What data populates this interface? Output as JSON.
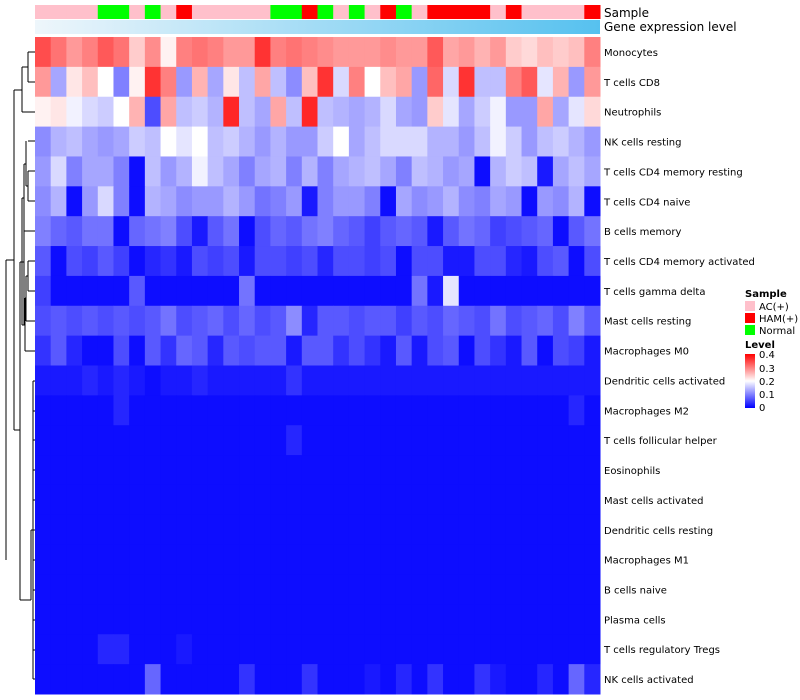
{
  "chart_data": {
    "type": "heatmap",
    "title": "",
    "annotation_tracks": [
      {
        "name": "Sample",
        "label": "Sample"
      },
      {
        "name": "Gene expression level",
        "label": "Gene expression level"
      }
    ],
    "sample_groups": [
      "A",
      "A",
      "A",
      "A",
      "N",
      "N",
      "A",
      "N",
      "A",
      "H",
      "A",
      "A",
      "A",
      "A",
      "A",
      "N",
      "N",
      "H",
      "N",
      "A",
      "N",
      "A",
      "H",
      "N",
      "A",
      "H",
      "H",
      "H",
      "H",
      "A",
      "H",
      "A",
      "A",
      "A",
      "A",
      "H"
    ],
    "rows": [
      {
        "label": "Monocytes",
        "values": [
          0.34,
          0.31,
          0.28,
          0.3,
          0.33,
          0.31,
          0.24,
          0.29,
          0.21,
          0.3,
          0.31,
          0.3,
          0.28,
          0.28,
          0.36,
          0.3,
          0.31,
          0.3,
          0.29,
          0.28,
          0.28,
          0.28,
          0.29,
          0.28,
          0.28,
          0.33,
          0.27,
          0.28,
          0.26,
          0.28,
          0.24,
          0.23,
          0.25,
          0.24,
          0.25,
          0.3
        ]
      },
      {
        "label": "T cells CD8",
        "values": [
          0.28,
          0.13,
          0.22,
          0.25,
          0.2,
          0.1,
          0.21,
          0.36,
          0.3,
          0.12,
          0.26,
          0.13,
          0.22,
          0.15,
          0.27,
          0.15,
          0.11,
          0.25,
          0.36,
          0.17,
          0.3,
          0.2,
          0.25,
          0.27,
          0.12,
          0.32,
          0.17,
          0.36,
          0.15,
          0.15,
          0.3,
          0.33,
          0.18,
          0.26,
          0.12,
          0.28
        ]
      },
      {
        "label": "Neutrophils",
        "values": [
          0.21,
          0.22,
          0.19,
          0.17,
          0.16,
          0.2,
          0.26,
          0.06,
          0.27,
          0.15,
          0.16,
          0.14,
          0.37,
          0.15,
          0.13,
          0.27,
          0.15,
          0.37,
          0.15,
          0.14,
          0.13,
          0.14,
          0.17,
          0.13,
          0.12,
          0.24,
          0.18,
          0.13,
          0.16,
          0.19,
          0.12,
          0.12,
          0.27,
          0.13,
          0.18,
          0.23
        ]
      },
      {
        "label": "NK cells resting",
        "values": [
          0.11,
          0.14,
          0.15,
          0.13,
          0.12,
          0.13,
          0.16,
          0.15,
          0.2,
          0.18,
          0.2,
          0.15,
          0.16,
          0.14,
          0.12,
          0.14,
          0.12,
          0.12,
          0.16,
          0.2,
          0.13,
          0.15,
          0.17,
          0.17,
          0.17,
          0.14,
          0.14,
          0.12,
          0.15,
          0.19,
          0.16,
          0.12,
          0.15,
          0.16,
          0.14,
          0.12
        ]
      },
      {
        "label": "T cells CD4 memory resting",
        "values": [
          0.12,
          0.17,
          0.1,
          0.13,
          0.13,
          0.1,
          0.01,
          0.15,
          0.12,
          0.14,
          0.19,
          0.15,
          0.13,
          0.1,
          0.13,
          0.14,
          0.1,
          0.14,
          0.1,
          0.13,
          0.14,
          0.15,
          0.13,
          0.1,
          0.15,
          0.14,
          0.12,
          0.13,
          0.01,
          0.14,
          0.16,
          0.15,
          0.02,
          0.13,
          0.15,
          0.13
        ]
      },
      {
        "label": "T cells CD4 naive",
        "values": [
          0.11,
          0.14,
          0.01,
          0.12,
          0.17,
          0.1,
          0.01,
          0.14,
          0.13,
          0.11,
          0.12,
          0.12,
          0.14,
          0.12,
          0.09,
          0.1,
          0.12,
          0.02,
          0.1,
          0.12,
          0.12,
          0.1,
          0.01,
          0.13,
          0.11,
          0.12,
          0.14,
          0.11,
          0.1,
          0.13,
          0.12,
          0.01,
          0.12,
          0.11,
          0.14,
          0.01
        ]
      },
      {
        "label": "B cells memory",
        "values": [
          0.1,
          0.08,
          0.07,
          0.09,
          0.09,
          0.01,
          0.08,
          0.09,
          0.1,
          0.06,
          0.02,
          0.07,
          0.09,
          0.01,
          0.06,
          0.08,
          0.07,
          0.09,
          0.1,
          0.08,
          0.07,
          0.05,
          0.07,
          0.08,
          0.07,
          0.02,
          0.07,
          0.09,
          0.08,
          0.05,
          0.06,
          0.07,
          0.08,
          0.01,
          0.07,
          0.09
        ]
      },
      {
        "label": "T cells CD4 memory activated",
        "values": [
          0.07,
          0.01,
          0.06,
          0.05,
          0.07,
          0.05,
          0.01,
          0.03,
          0.04,
          0.02,
          0.06,
          0.05,
          0.06,
          0.02,
          0.06,
          0.06,
          0.05,
          0.06,
          0.03,
          0.06,
          0.06,
          0.05,
          0.06,
          0.01,
          0.06,
          0.06,
          0.02,
          0.02,
          0.06,
          0.06,
          0.03,
          0.02,
          0.06,
          0.07,
          0.01,
          0.06
        ]
      },
      {
        "label": "T cells gamma delta",
        "values": [
          0.05,
          0.01,
          0.01,
          0.01,
          0.01,
          0.01,
          0.07,
          0.01,
          0.01,
          0.01,
          0.01,
          0.01,
          0.01,
          0.09,
          0.01,
          0.01,
          0.01,
          0.01,
          0.01,
          0.01,
          0.01,
          0.01,
          0.01,
          0.01,
          0.09,
          0.02,
          0.18,
          0.01,
          0.01,
          0.01,
          0.01,
          0.01,
          0.01,
          0.01,
          0.01,
          0.01
        ]
      },
      {
        "label": "Mast cells resting",
        "values": [
          0.06,
          0.07,
          0.06,
          0.07,
          0.06,
          0.07,
          0.06,
          0.07,
          0.09,
          0.06,
          0.07,
          0.08,
          0.06,
          0.08,
          0.06,
          0.07,
          0.11,
          0.03,
          0.07,
          0.07,
          0.06,
          0.07,
          0.07,
          0.05,
          0.07,
          0.06,
          0.08,
          0.07,
          0.06,
          0.09,
          0.06,
          0.07,
          0.08,
          0.06,
          0.1,
          0.07
        ]
      },
      {
        "label": "Macrophages M0",
        "values": [
          0.04,
          0.07,
          0.03,
          0.01,
          0.01,
          0.06,
          0.01,
          0.07,
          0.04,
          0.08,
          0.07,
          0.03,
          0.07,
          0.06,
          0.07,
          0.07,
          0.02,
          0.07,
          0.07,
          0.04,
          0.06,
          0.04,
          0.02,
          0.07,
          0.02,
          0.06,
          0.07,
          0.01,
          0.06,
          0.04,
          0.02,
          0.07,
          0.01,
          0.06,
          0.05,
          0.02
        ]
      },
      {
        "label": "Dendritic cells activated",
        "values": [
          0.02,
          0.02,
          0.02,
          0.03,
          0.02,
          0.03,
          0.02,
          0.01,
          0.02,
          0.02,
          0.03,
          0.02,
          0.02,
          0.02,
          0.02,
          0.02,
          0.04,
          0.02,
          0.02,
          0.02,
          0.02,
          0.02,
          0.02,
          0.02,
          0.02,
          0.02,
          0.02,
          0.02,
          0.02,
          0.02,
          0.02,
          0.02,
          0.02,
          0.02,
          0.02,
          0.02
        ]
      },
      {
        "label": "Macrophages M2",
        "values": [
          0.01,
          0.01,
          0.01,
          0.01,
          0.01,
          0.03,
          0.01,
          0.01,
          0.01,
          0.01,
          0.01,
          0.01,
          0.01,
          0.01,
          0.01,
          0.01,
          0.01,
          0.01,
          0.01,
          0.01,
          0.01,
          0.01,
          0.01,
          0.01,
          0.01,
          0.01,
          0.01,
          0.01,
          0.01,
          0.01,
          0.01,
          0.01,
          0.01,
          0.01,
          0.03,
          0.01
        ]
      },
      {
        "label": "T cells follicular helper",
        "values": [
          0.01,
          0.01,
          0.01,
          0.01,
          0.01,
          0.01,
          0.01,
          0.01,
          0.01,
          0.01,
          0.01,
          0.01,
          0.01,
          0.01,
          0.01,
          0.01,
          0.03,
          0.01,
          0.01,
          0.01,
          0.01,
          0.01,
          0.01,
          0.01,
          0.01,
          0.01,
          0.01,
          0.01,
          0.01,
          0.01,
          0.01,
          0.01,
          0.01,
          0.01,
          0.01,
          0.01
        ]
      },
      {
        "label": "Eosinophils",
        "values": [
          0.01,
          0.01,
          0.01,
          0.01,
          0.01,
          0.01,
          0.01,
          0.01,
          0.01,
          0.01,
          0.01,
          0.01,
          0.01,
          0.01,
          0.01,
          0.01,
          0.01,
          0.01,
          0.01,
          0.01,
          0.01,
          0.01,
          0.01,
          0.01,
          0.01,
          0.01,
          0.01,
          0.01,
          0.01,
          0.01,
          0.01,
          0.01,
          0.01,
          0.01,
          0.01,
          0.01
        ]
      },
      {
        "label": "Mast cells activated",
        "values": [
          0.01,
          0.01,
          0.01,
          0.01,
          0.01,
          0.01,
          0.01,
          0.01,
          0.01,
          0.01,
          0.01,
          0.01,
          0.01,
          0.01,
          0.01,
          0.01,
          0.01,
          0.01,
          0.01,
          0.01,
          0.01,
          0.01,
          0.01,
          0.01,
          0.01,
          0.01,
          0.01,
          0.01,
          0.01,
          0.01,
          0.01,
          0.01,
          0.01,
          0.01,
          0.01,
          0.01
        ]
      },
      {
        "label": "Dendritic cells resting",
        "values": [
          0.01,
          0.01,
          0.01,
          0.01,
          0.01,
          0.01,
          0.01,
          0.01,
          0.01,
          0.01,
          0.01,
          0.01,
          0.01,
          0.01,
          0.01,
          0.01,
          0.01,
          0.01,
          0.01,
          0.01,
          0.01,
          0.01,
          0.01,
          0.01,
          0.01,
          0.01,
          0.01,
          0.01,
          0.01,
          0.01,
          0.01,
          0.01,
          0.01,
          0.01,
          0.01,
          0.01
        ]
      },
      {
        "label": "Macrophages M1",
        "values": [
          0.01,
          0.01,
          0.01,
          0.01,
          0.01,
          0.01,
          0.01,
          0.01,
          0.01,
          0.01,
          0.01,
          0.01,
          0.01,
          0.01,
          0.01,
          0.01,
          0.01,
          0.01,
          0.01,
          0.01,
          0.01,
          0.01,
          0.01,
          0.01,
          0.01,
          0.01,
          0.01,
          0.01,
          0.01,
          0.01,
          0.01,
          0.01,
          0.01,
          0.01,
          0.01,
          0.01
        ]
      },
      {
        "label": "B cells naive",
        "values": [
          0.01,
          0.01,
          0.01,
          0.01,
          0.01,
          0.01,
          0.01,
          0.01,
          0.01,
          0.01,
          0.01,
          0.01,
          0.01,
          0.01,
          0.01,
          0.01,
          0.01,
          0.01,
          0.01,
          0.01,
          0.01,
          0.01,
          0.01,
          0.01,
          0.01,
          0.01,
          0.01,
          0.01,
          0.01,
          0.01,
          0.01,
          0.01,
          0.01,
          0.01,
          0.01,
          0.01
        ]
      },
      {
        "label": "Plasma cells",
        "values": [
          0.01,
          0.01,
          0.01,
          0.01,
          0.01,
          0.01,
          0.01,
          0.01,
          0.01,
          0.01,
          0.01,
          0.01,
          0.01,
          0.01,
          0.01,
          0.01,
          0.01,
          0.01,
          0.01,
          0.01,
          0.01,
          0.01,
          0.01,
          0.01,
          0.01,
          0.01,
          0.01,
          0.01,
          0.01,
          0.01,
          0.01,
          0.01,
          0.01,
          0.01,
          0.01,
          0.01
        ]
      },
      {
        "label": "T cells regulatory  Tregs",
        "values": [
          0.01,
          0.01,
          0.01,
          0.01,
          0.03,
          0.03,
          0.01,
          0.01,
          0.01,
          0.02,
          0.01,
          0.01,
          0.01,
          0.01,
          0.01,
          0.01,
          0.01,
          0.01,
          0.01,
          0.01,
          0.01,
          0.01,
          0.01,
          0.01,
          0.01,
          0.01,
          0.01,
          0.01,
          0.01,
          0.01,
          0.01,
          0.01,
          0.01,
          0.01,
          0.01,
          0.01
        ]
      },
      {
        "label": "NK cells activated",
        "values": [
          0.01,
          0.01,
          0.01,
          0.01,
          0.01,
          0.01,
          0.01,
          0.08,
          0.01,
          0.01,
          0.01,
          0.01,
          0.01,
          0.04,
          0.01,
          0.01,
          0.01,
          0.04,
          0.01,
          0.01,
          0.01,
          0.02,
          0.01,
          0.03,
          0.01,
          0.04,
          0.01,
          0.01,
          0.04,
          0.02,
          0.01,
          0.01,
          0.03,
          0.01,
          0.08,
          0.03
        ]
      }
    ],
    "colorscale": {
      "min": 0,
      "max": 0.4,
      "colors": [
        "#0000ff",
        "#ffffff",
        "#ff0000"
      ]
    },
    "legends": {
      "sample": {
        "title": "Sample",
        "items": [
          {
            "key": "A",
            "label": "AC(+)",
            "color": "#ffc0cb"
          },
          {
            "key": "H",
            "label": "HAM(+)",
            "color": "#ff0000"
          },
          {
            "key": "N",
            "label": "Normal",
            "color": "#00ff00"
          }
        ]
      },
      "level": {
        "title": "Level",
        "ticks": [
          "0.4",
          "0.3",
          "0.2",
          "0.1",
          "0"
        ]
      }
    },
    "expression_bar": {
      "start_color": "#eef6fb",
      "end_color": "#56c1ef"
    },
    "dendrogram": "rows"
  }
}
